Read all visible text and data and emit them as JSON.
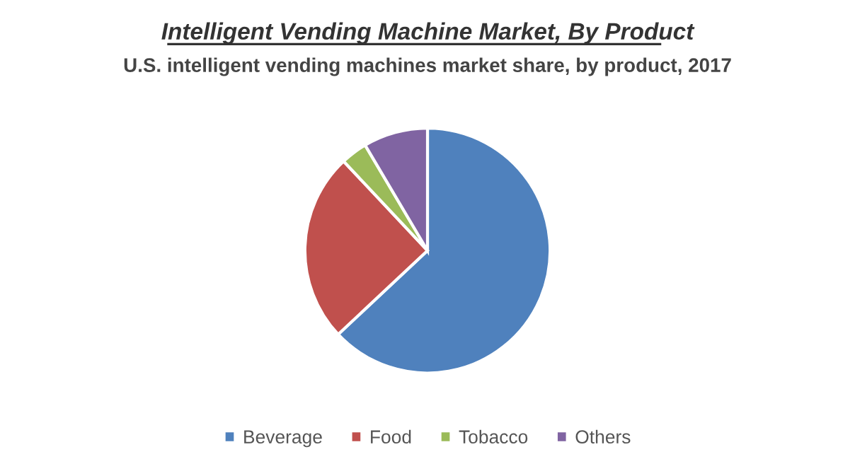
{
  "chart_data": {
    "type": "pie",
    "title": "Intelligent Vending Machine Market, By Product",
    "subtitle": "U.S. intelligent vending machines market share, by product, 2017",
    "categories": [
      "Beverage",
      "Food",
      "Tobacco",
      "Others"
    ],
    "values": [
      63,
      25,
      3.5,
      8.5
    ],
    "colors": [
      "#4f81bd",
      "#c0504d",
      "#9bbb59",
      "#8064a2"
    ],
    "legend": "bottom"
  }
}
